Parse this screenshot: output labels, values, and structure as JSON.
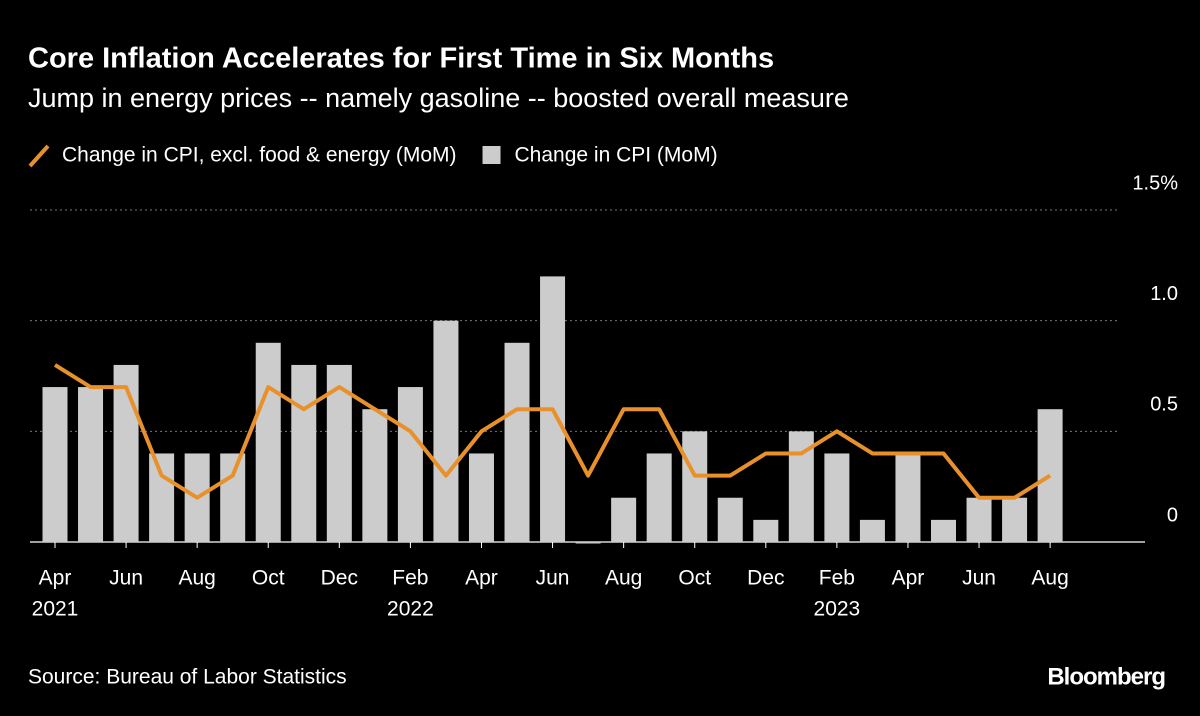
{
  "chart_data": {
    "type": "bar",
    "title": "Core Inflation Accelerates for First Time in Six Months",
    "subtitle": "Jump in energy prices -- namely gasoline -- boosted overall measure",
    "categories": [
      "Apr",
      null,
      "Jun",
      null,
      "Aug",
      null,
      "Oct",
      null,
      "Dec",
      null,
      "Feb",
      null,
      "Apr",
      null,
      "Jun",
      null,
      "Aug",
      null,
      "Oct",
      null,
      "Dec",
      null,
      "Feb",
      null,
      "Apr",
      null,
      "Jun",
      null,
      "Aug"
    ],
    "category_years": [
      "2021",
      null,
      null,
      null,
      null,
      null,
      null,
      null,
      null,
      null,
      "2022",
      null,
      null,
      null,
      null,
      null,
      null,
      null,
      null,
      null,
      null,
      null,
      "2023",
      null,
      null,
      null,
      null,
      null,
      null
    ],
    "series": [
      {
        "name": "Change in CPI, excl. food & energy (MoM)",
        "type": "line",
        "color": "#e8912b",
        "values": [
          0.8,
          0.7,
          0.7,
          0.3,
          0.2,
          0.3,
          0.7,
          0.6,
          0.7,
          0.6,
          0.5,
          0.3,
          0.5,
          0.6,
          0.6,
          0.3,
          0.6,
          0.6,
          0.3,
          0.3,
          0.4,
          0.4,
          0.5,
          0.4,
          0.4,
          0.4,
          0.2,
          0.2,
          0.3
        ]
      },
      {
        "name": "Change in CPI (MoM)",
        "type": "bar",
        "color": "#cccccc",
        "values": [
          0.7,
          0.7,
          0.8,
          0.4,
          0.4,
          0.4,
          0.9,
          0.8,
          0.8,
          0.6,
          0.7,
          1.0,
          0.4,
          0.9,
          1.2,
          0.0,
          0.2,
          0.4,
          0.5,
          0.2,
          0.1,
          0.5,
          0.4,
          0.1,
          0.4,
          0.1,
          0.2,
          0.2,
          0.6
        ]
      }
    ],
    "ylim": [
      0,
      1.5
    ],
    "yticks": [
      0,
      0.5,
      {
        "value": 1,
        "label": "1.0"
      },
      {
        "value": 1.5,
        "label": "1.5%"
      }
    ],
    "grid": true,
    "source": "Source: Bureau of Labor Statistics",
    "logo": "Bloomberg"
  }
}
